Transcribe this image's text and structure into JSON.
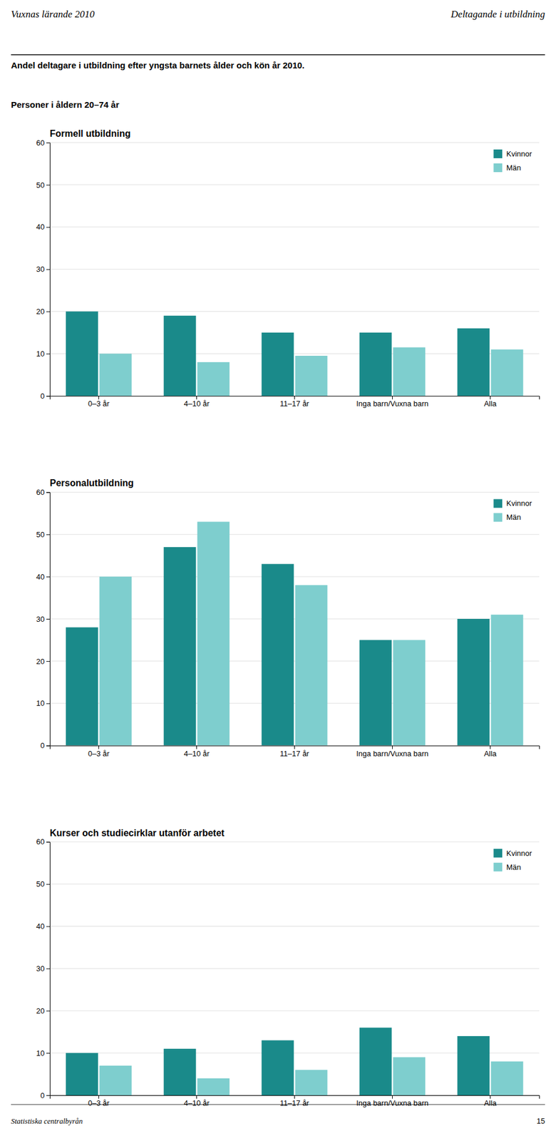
{
  "title": "Andel deltagare i utbildning efter yngsta barnets ålder och kön år 2010.",
  "subtitle": "Personer i åldern 20–74 år",
  "annotations": [
    "Vuxnas lärande 2010",
    "Deltagande i utbildning",
    "Statistiska centralbyrån",
    "15"
  ],
  "chart_data": [
    {
      "type": "bar",
      "title": "Formell utbildning",
      "categories": [
        "0–3 år",
        "4–10 år",
        "11–17 år",
        "Inga barn/Vuxna barn",
        "Alla"
      ],
      "series": [
        {
          "name": "Kvinnor",
          "color": "#1a8a8a",
          "values": [
            20,
            19,
            15,
            15,
            16
          ]
        },
        {
          "name": "Män",
          "color": "#7ecece",
          "values": [
            10,
            8,
            9.5,
            11.5,
            11
          ]
        }
      ],
      "ylim": [
        0,
        60
      ],
      "yticks": [
        0,
        10,
        20,
        30,
        40,
        50,
        60
      ],
      "grid": true,
      "legend": "upper right"
    },
    {
      "type": "bar",
      "title": "Personalutbildning",
      "categories": [
        "0–3 år",
        "4–10 år",
        "11–17 år",
        "Inga barn/Vuxna barn",
        "Alla"
      ],
      "series": [
        {
          "name": "Kvinnor",
          "color": "#1a8a8a",
          "values": [
            28,
            47,
            43,
            25,
            30
          ]
        },
        {
          "name": "Män",
          "color": "#7ecece",
          "values": [
            40,
            53,
            38,
            25,
            31
          ]
        }
      ],
      "ylim": [
        0,
        60
      ],
      "yticks": [
        0,
        10,
        20,
        30,
        40,
        50,
        60
      ],
      "grid": true,
      "legend": "upper right"
    },
    {
      "type": "bar",
      "title": "Kurser och studiecirklar utanför arbetet",
      "categories": [
        "0–3 år",
        "4–10 år",
        "11–17 år",
        "Inga barn/Vuxna barn",
        "Alla"
      ],
      "series": [
        {
          "name": "Kvinnor",
          "color": "#1a8a8a",
          "values": [
            10,
            11,
            13,
            16,
            14
          ]
        },
        {
          "name": "Män",
          "color": "#7ecece",
          "values": [
            7,
            4,
            6,
            9,
            8
          ]
        }
      ],
      "ylim": [
        0,
        60
      ],
      "yticks": [
        0,
        10,
        20,
        30,
        40,
        50,
        60
      ],
      "grid": true,
      "legend": "upper right"
    }
  ]
}
